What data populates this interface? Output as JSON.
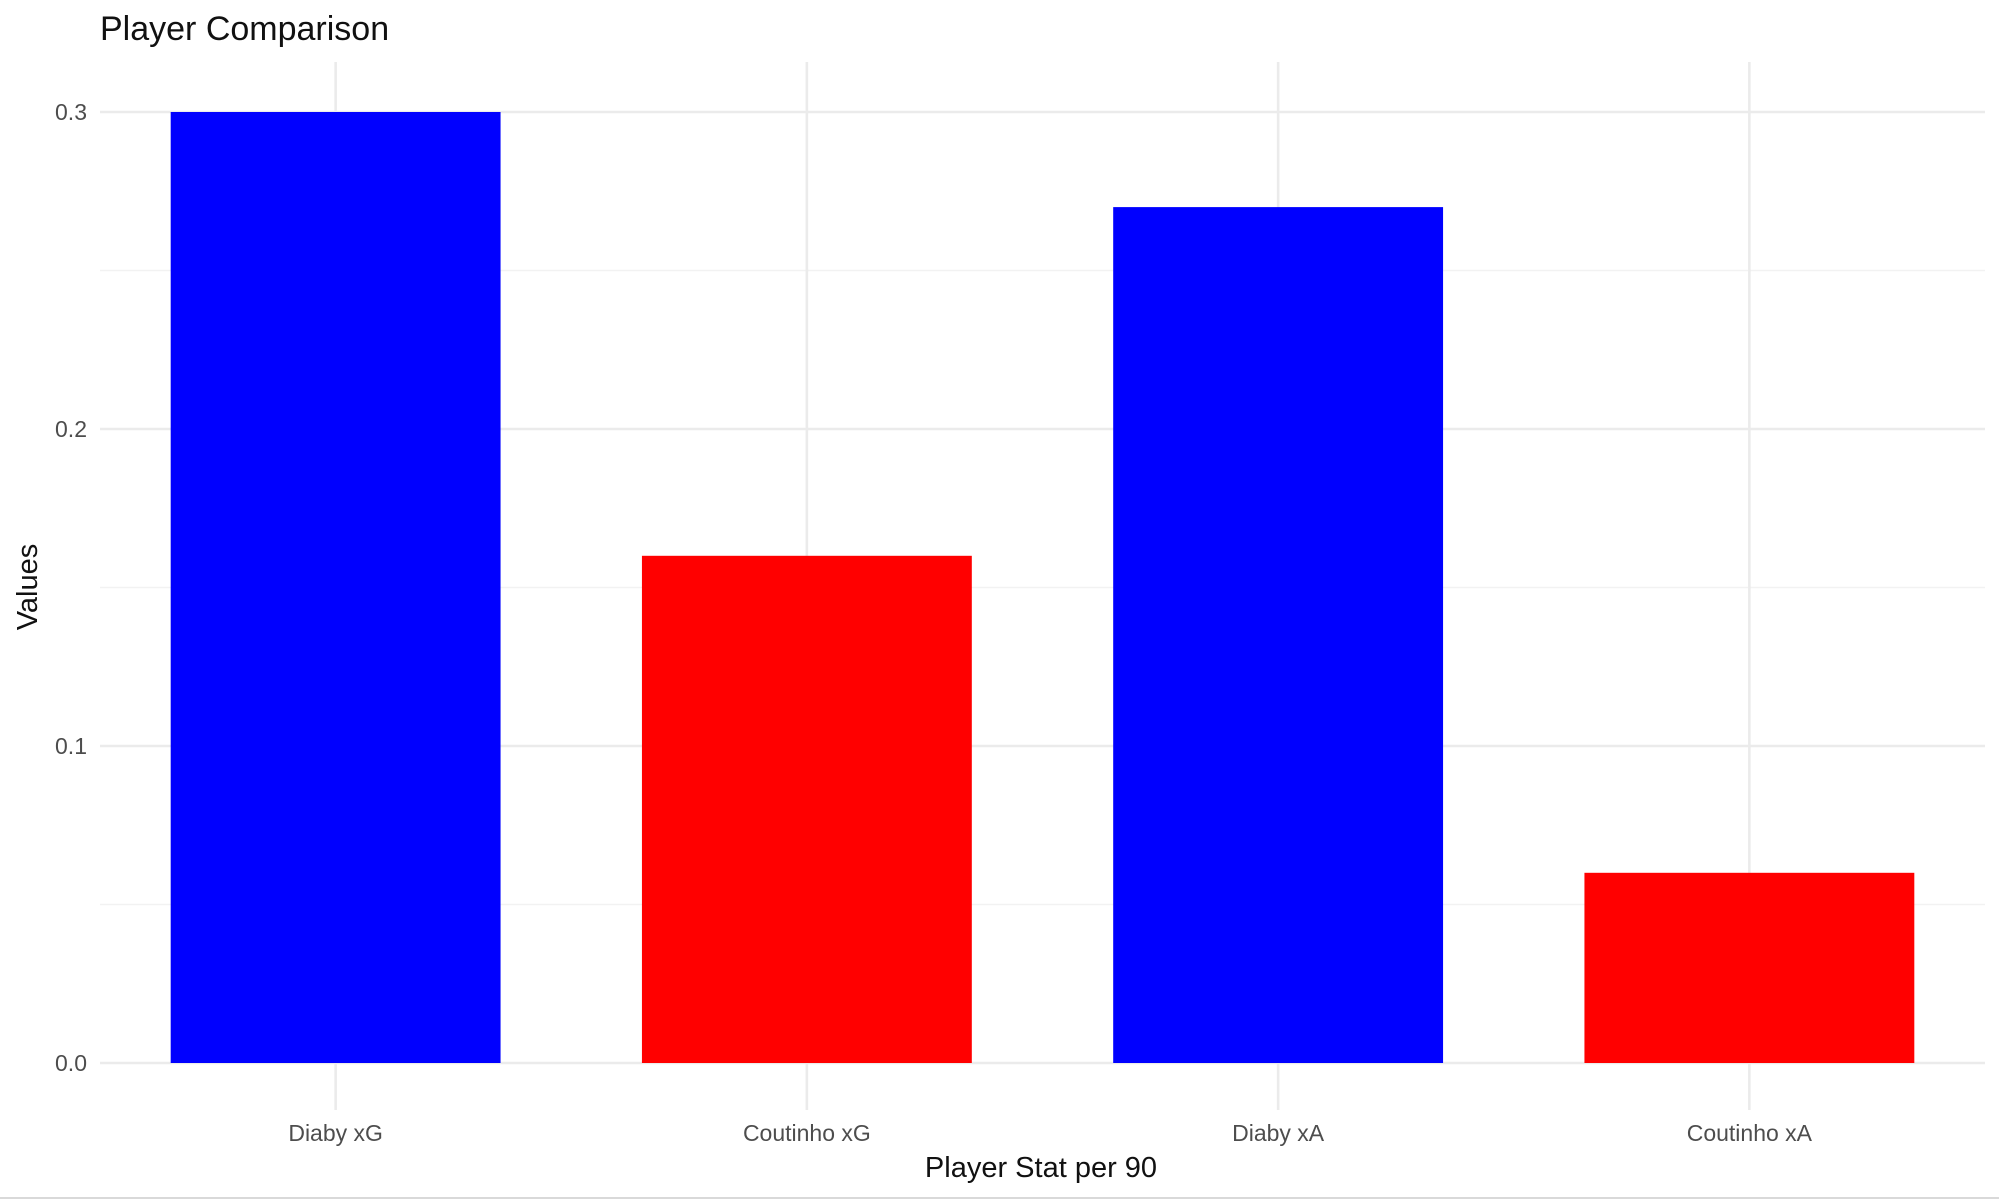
{
  "chart_data": {
    "type": "bar",
    "title": "Player Comparison",
    "xlabel": "Player Stat per 90",
    "ylabel": "Values",
    "categories": [
      "Diaby xG",
      "Coutinho xG",
      "Diaby xA",
      "Coutinho xA"
    ],
    "values": [
      0.3,
      0.16,
      0.27,
      0.06
    ],
    "bar_colors": [
      "#0000ff",
      "#ff0000",
      "#0000ff",
      "#ff0000"
    ],
    "ylim": [
      0,
      0.3
    ],
    "yticks": [
      0.0,
      0.1,
      0.2,
      0.3
    ],
    "ytick_labels": [
      "0.0",
      "0.1",
      "0.2",
      "0.3"
    ],
    "grid": true,
    "legend": "none"
  }
}
